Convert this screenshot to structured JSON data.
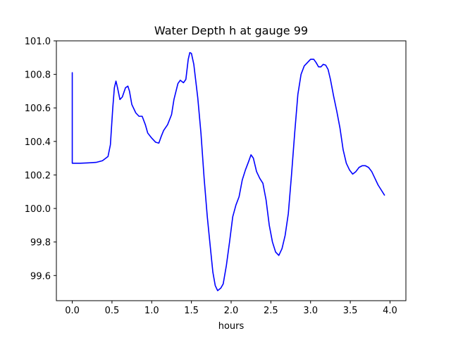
{
  "chart_data": {
    "type": "line",
    "title": "Water Depth h at gauge 99",
    "xlabel": "hours",
    "ylabel": "",
    "xlim": [
      -0.2,
      4.2
    ],
    "ylim": [
      99.45,
      101.0
    ],
    "grid": false,
    "xticks": [
      0.0,
      0.5,
      1.0,
      1.5,
      2.0,
      2.5,
      3.0,
      3.5,
      4.0
    ],
    "xtick_labels": [
      "0.0",
      "0.5",
      "1.0",
      "1.5",
      "2.0",
      "2.5",
      "3.0",
      "3.5",
      "4.0"
    ],
    "yticks": [
      99.6,
      99.8,
      100.0,
      100.2,
      100.4,
      100.6,
      100.8,
      101.0
    ],
    "ytick_labels": [
      "99.6",
      "99.8",
      "100.0",
      "100.2",
      "100.4",
      "100.6",
      "100.8",
      "101.0"
    ],
    "series": [
      {
        "color": "#0000ff",
        "points": [
          [
            0.0,
            100.81
          ],
          [
            0.0,
            100.27
          ],
          [
            0.1,
            100.27
          ],
          [
            0.2,
            100.272
          ],
          [
            0.3,
            100.275
          ],
          [
            0.38,
            100.285
          ],
          [
            0.45,
            100.31
          ],
          [
            0.48,
            100.38
          ],
          [
            0.51,
            100.6
          ],
          [
            0.53,
            100.72
          ],
          [
            0.55,
            100.76
          ],
          [
            0.57,
            100.72
          ],
          [
            0.6,
            100.65
          ],
          [
            0.63,
            100.665
          ],
          [
            0.67,
            100.72
          ],
          [
            0.7,
            100.73
          ],
          [
            0.72,
            100.7
          ],
          [
            0.75,
            100.62
          ],
          [
            0.8,
            100.57
          ],
          [
            0.84,
            100.55
          ],
          [
            0.88,
            100.55
          ],
          [
            0.92,
            100.5
          ],
          [
            0.95,
            100.45
          ],
          [
            1.0,
            100.42
          ],
          [
            1.05,
            100.395
          ],
          [
            1.09,
            100.39
          ],
          [
            1.12,
            100.43
          ],
          [
            1.15,
            100.465
          ],
          [
            1.2,
            100.5
          ],
          [
            1.25,
            100.56
          ],
          [
            1.28,
            100.65
          ],
          [
            1.33,
            100.745
          ],
          [
            1.36,
            100.765
          ],
          [
            1.4,
            100.75
          ],
          [
            1.43,
            100.77
          ],
          [
            1.46,
            100.89
          ],
          [
            1.48,
            100.93
          ],
          [
            1.5,
            100.925
          ],
          [
            1.53,
            100.86
          ],
          [
            1.58,
            100.66
          ],
          [
            1.62,
            100.45
          ],
          [
            1.66,
            100.18
          ],
          [
            1.7,
            99.95
          ],
          [
            1.74,
            99.76
          ],
          [
            1.77,
            99.62
          ],
          [
            1.8,
            99.54
          ],
          [
            1.83,
            99.51
          ],
          [
            1.87,
            99.525
          ],
          [
            1.9,
            99.55
          ],
          [
            1.94,
            99.66
          ],
          [
            1.98,
            99.8
          ],
          [
            2.02,
            99.95
          ],
          [
            2.06,
            100.02
          ],
          [
            2.1,
            100.07
          ],
          [
            2.14,
            100.17
          ],
          [
            2.18,
            100.23
          ],
          [
            2.22,
            100.28
          ],
          [
            2.25,
            100.32
          ],
          [
            2.28,
            100.3
          ],
          [
            2.32,
            100.22
          ],
          [
            2.36,
            100.18
          ],
          [
            2.4,
            100.15
          ],
          [
            2.44,
            100.05
          ],
          [
            2.48,
            99.9
          ],
          [
            2.52,
            99.8
          ],
          [
            2.56,
            99.74
          ],
          [
            2.6,
            99.72
          ],
          [
            2.64,
            99.76
          ],
          [
            2.68,
            99.84
          ],
          [
            2.72,
            99.97
          ],
          [
            2.76,
            100.2
          ],
          [
            2.8,
            100.45
          ],
          [
            2.84,
            100.68
          ],
          [
            2.88,
            100.8
          ],
          [
            2.92,
            100.85
          ],
          [
            2.96,
            100.87
          ],
          [
            3.0,
            100.89
          ],
          [
            3.04,
            100.89
          ],
          [
            3.07,
            100.87
          ],
          [
            3.1,
            100.845
          ],
          [
            3.13,
            100.845
          ],
          [
            3.16,
            100.86
          ],
          [
            3.19,
            100.855
          ],
          [
            3.22,
            100.83
          ],
          [
            3.25,
            100.77
          ],
          [
            3.29,
            100.67
          ],
          [
            3.33,
            100.58
          ],
          [
            3.37,
            100.48
          ],
          [
            3.41,
            100.35
          ],
          [
            3.45,
            100.27
          ],
          [
            3.49,
            100.23
          ],
          [
            3.53,
            100.205
          ],
          [
            3.57,
            100.22
          ],
          [
            3.61,
            100.245
          ],
          [
            3.65,
            100.255
          ],
          [
            3.69,
            100.255
          ],
          [
            3.73,
            100.245
          ],
          [
            3.77,
            100.22
          ],
          [
            3.81,
            100.18
          ],
          [
            3.85,
            100.14
          ],
          [
            3.89,
            100.11
          ],
          [
            3.93,
            100.08
          ]
        ]
      }
    ]
  }
}
